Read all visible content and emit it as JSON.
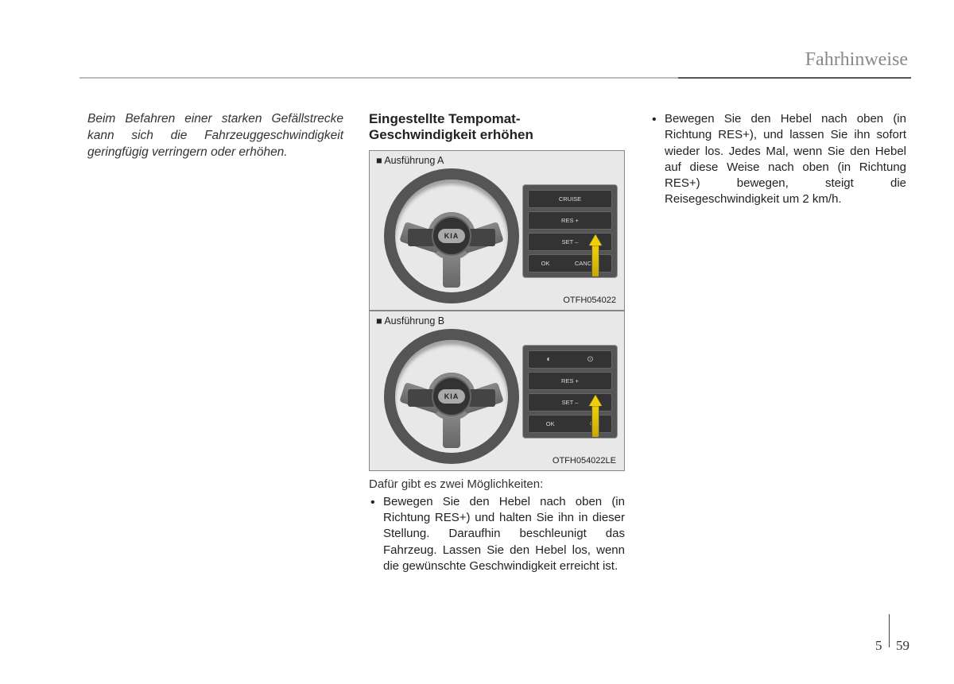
{
  "header": {
    "chapter_title": "Fahrhinweise"
  },
  "col1": {
    "intro_note": "Beim Befahren einer starken Gefäll­strecke kann sich die Fahrzeugge­schwindigkeit geringfügig verringern oder erhöhen."
  },
  "col2": {
    "heading": "Eingestellte Tempomat-Geschwindigkeit erhöhen",
    "figA": {
      "label": "■ Ausführung A",
      "code": "OTFH054022",
      "logo": "KIA",
      "btn_cruise": "CRUISE",
      "btn_res": "RES +",
      "btn_set": "SET –",
      "btn_ok": "OK",
      "btn_cancel": "CANCEL"
    },
    "figB": {
      "label": "■ Ausführung B",
      "code": "OTFH054022LE",
      "logo": "KIA",
      "btn_res": "RES +",
      "btn_set": "SET –",
      "btn_ok": "OK"
    },
    "intro_line": "Dafür gibt es zwei Möglichkeiten:",
    "bullet1": "Bewegen Sie den Hebel nach oben (in Richtung RES+) und halten Sie ihn in dieser Stellung. Daraufhin beschleu­nigt das Fahrzeug. Lassen Sie den Hebel los, wenn die gewünschte Geschwindigkeit erreicht ist."
  },
  "col3": {
    "bullet2": "Bewegen Sie den Hebel nach oben (in Richtung RES+), und lassen Sie ihn sofort wieder los. Jedes Mal, wenn Sie den Hebel auf diese Weise nach oben (in Richtung RES+) bewegen, steigt die Reisegeschwindigkeit um 2 km/h."
  },
  "footer": {
    "chapter": "5",
    "page": "59"
  }
}
